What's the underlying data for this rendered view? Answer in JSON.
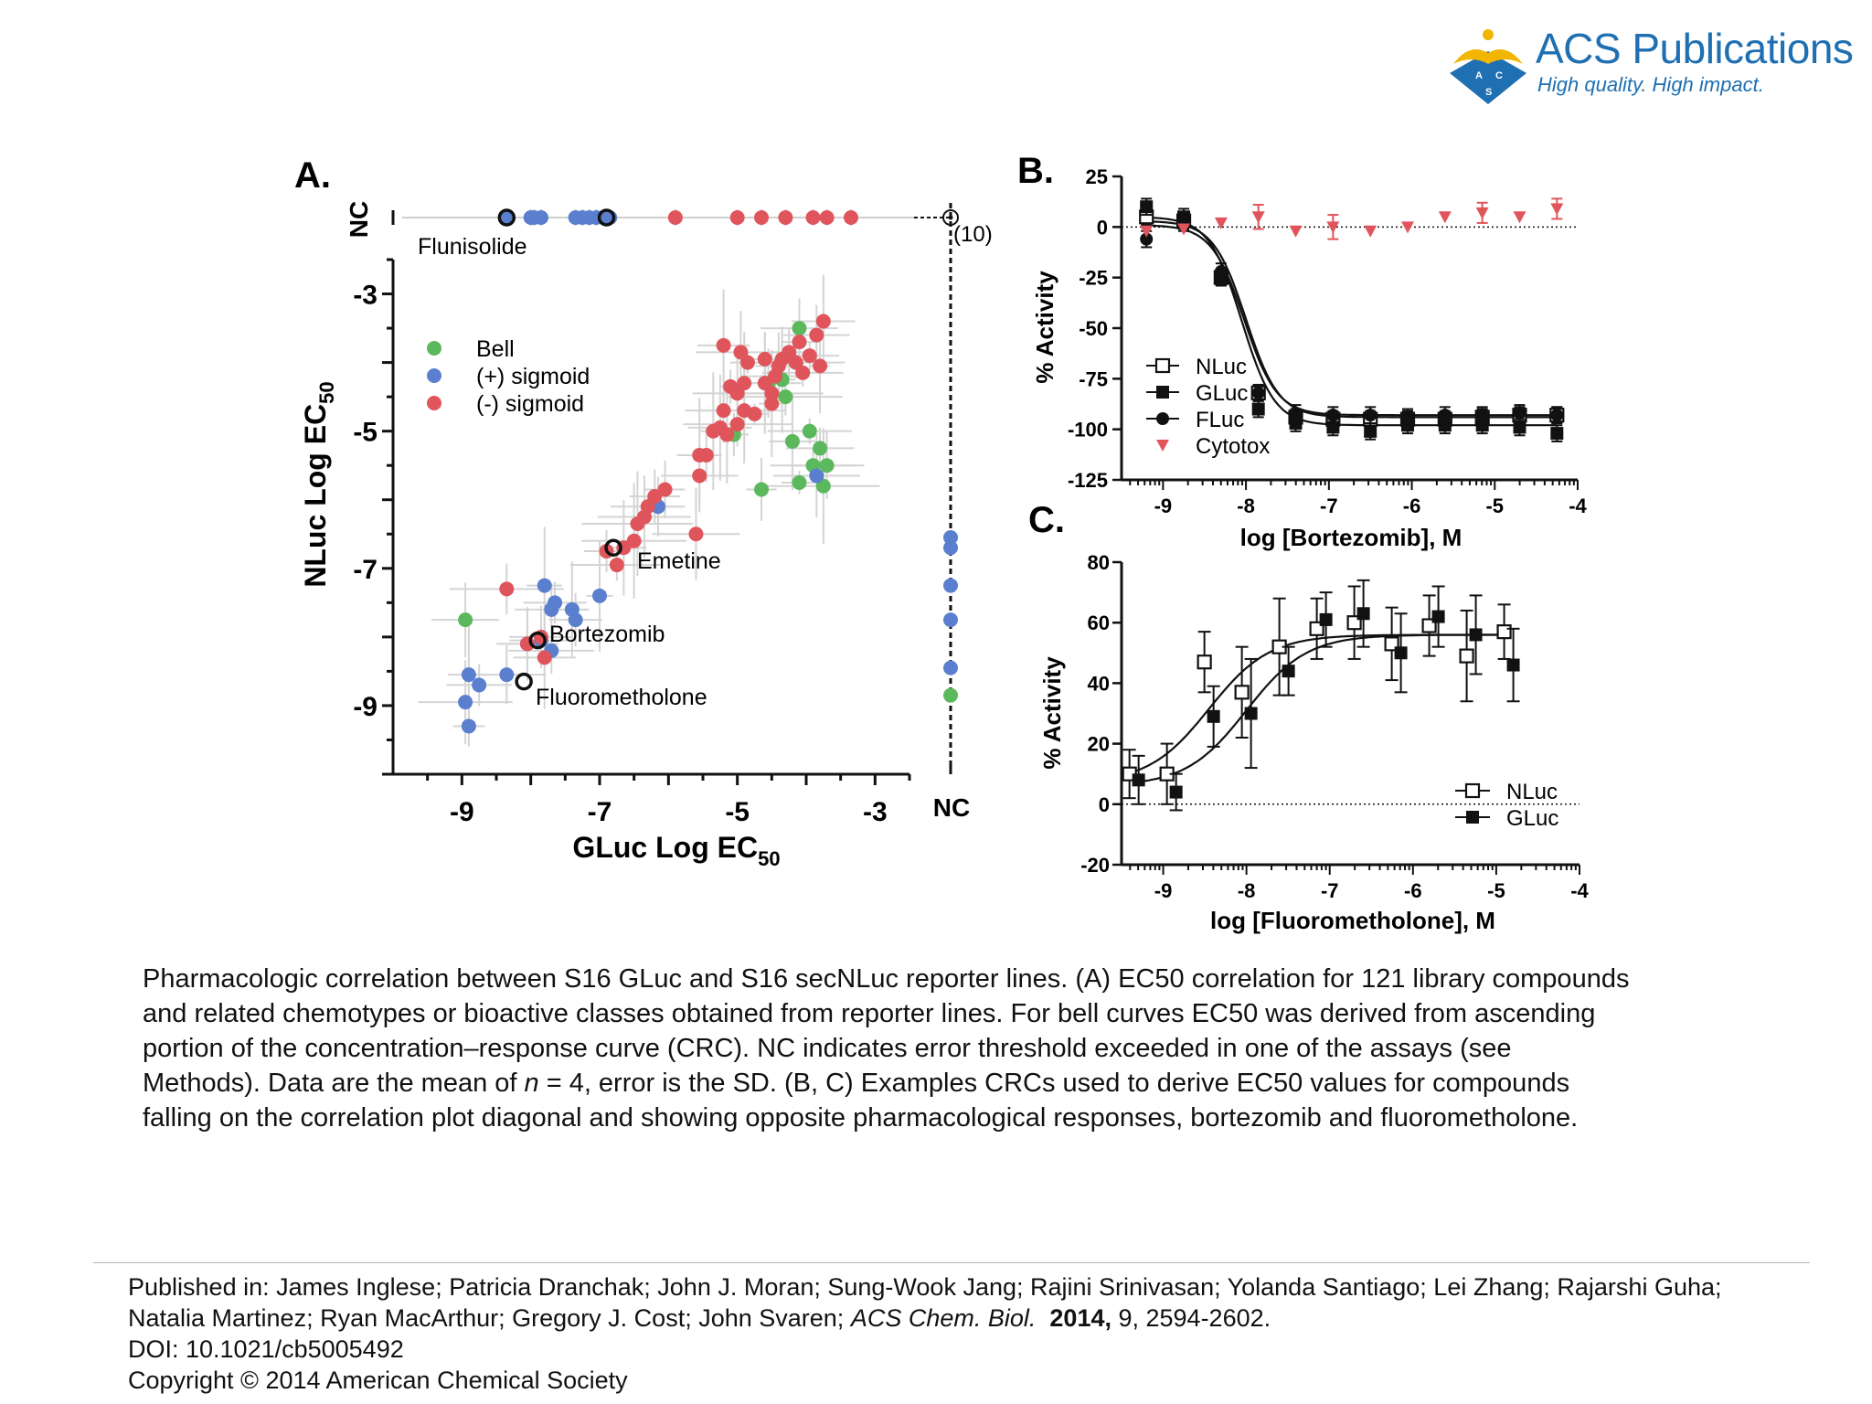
{
  "brand": {
    "name": "ACS Publications",
    "tagline": "High quality. High impact.",
    "logo_letters": [
      "A",
      "C",
      "S"
    ],
    "colors": {
      "blue": "#1f6fb3",
      "gold": "#f2b600"
    }
  },
  "colors": {
    "bell": "#5cb85c",
    "pos": "#5b7fcf",
    "neg": "#e0555c",
    "cytotox": "#e0555c"
  },
  "panels": {
    "a": "A.",
    "b": "B.",
    "c": "C."
  },
  "chart_data": [
    {
      "id": "A",
      "type": "scatter",
      "xlabel_main": "GLuc Log EC",
      "xlabel_sub": "50",
      "ylabel_main": "NLuc Log EC",
      "ylabel_sub": "50",
      "xlim": [
        -10,
        -2.5
      ],
      "ylim": [
        -10,
        -2.5
      ],
      "xticks": [
        -9,
        -7,
        -5,
        -3
      ],
      "yticks": [
        -3,
        -5,
        -7,
        -9
      ],
      "nc_label": "NC",
      "nc_count_label": "(10)",
      "legend": [
        {
          "name": "Bell",
          "group": "bell"
        },
        {
          "name": "(+) sigmoid",
          "group": "pos"
        },
        {
          "name": "(-) sigmoid",
          "group": "neg"
        }
      ],
      "annotations": [
        {
          "label": "Flunisolide",
          "x": -8.3,
          "y": "NC"
        },
        {
          "label": "Emetine",
          "x": -6.8,
          "y": -6.7
        },
        {
          "label": "Bortezomib",
          "x": -7.9,
          "y": -8.05
        },
        {
          "label": "Fluorometholone",
          "x": -8.1,
          "y": -8.65
        }
      ],
      "points": [
        {
          "group": "bell",
          "x": -8.95,
          "y": -7.75
        },
        {
          "group": "bell",
          "x": -5.05,
          "y": -5.05
        },
        {
          "group": "bell",
          "x": -4.55,
          "y": -4.3
        },
        {
          "group": "bell",
          "x": -4.35,
          "y": -4.25
        },
        {
          "group": "bell",
          "x": -4.1,
          "y": -3.5
        },
        {
          "group": "bell",
          "x": -4.2,
          "y": -5.15
        },
        {
          "group": "bell",
          "x": -3.95,
          "y": -5.0
        },
        {
          "group": "bell",
          "x": -3.8,
          "y": -5.25
        },
        {
          "group": "bell",
          "x": -3.9,
          "y": -5.5
        },
        {
          "group": "bell",
          "x": -3.7,
          "y": -5.5
        },
        {
          "group": "bell",
          "x": -4.1,
          "y": -5.75
        },
        {
          "group": "bell",
          "x": -3.75,
          "y": -5.8
        },
        {
          "group": "bell",
          "x": -4.65,
          "y": -5.85
        },
        {
          "group": "bell",
          "x": -4.3,
          "y": -4.5
        },
        {
          "group": "pos",
          "x": -8.05,
          "y": -8.1
        },
        {
          "group": "pos",
          "x": -7.7,
          "y": -8.2
        },
        {
          "group": "pos",
          "x": -7.8,
          "y": -7.25
        },
        {
          "group": "pos",
          "x": -7.65,
          "y": -7.5
        },
        {
          "group": "pos",
          "x": -7.7,
          "y": -7.6
        },
        {
          "group": "pos",
          "x": -7.4,
          "y": -7.6
        },
        {
          "group": "pos",
          "x": -7.35,
          "y": -7.75
        },
        {
          "group": "pos",
          "x": -7.0,
          "y": -7.4
        },
        {
          "group": "pos",
          "x": -8.9,
          "y": -8.55
        },
        {
          "group": "pos",
          "x": -8.75,
          "y": -8.7
        },
        {
          "group": "pos",
          "x": -8.35,
          "y": -8.55
        },
        {
          "group": "pos",
          "x": -8.95,
          "y": -8.95
        },
        {
          "group": "pos",
          "x": -8.9,
          "y": -9.3
        },
        {
          "group": "pos",
          "x": -7.85,
          "y": -8.05
        },
        {
          "group": "pos",
          "x": -6.15,
          "y": -6.1
        },
        {
          "group": "pos",
          "x": -3.85,
          "y": -5.65
        },
        {
          "group": "neg",
          "x": -8.35,
          "y": -7.3
        },
        {
          "group": "neg",
          "x": -8.05,
          "y": -8.1
        },
        {
          "group": "neg",
          "x": -7.8,
          "y": -8.3
        },
        {
          "group": "neg",
          "x": -7.85,
          "y": -8.0
        },
        {
          "group": "neg",
          "x": -6.9,
          "y": -6.75
        },
        {
          "group": "neg",
          "x": -6.75,
          "y": -6.95
        },
        {
          "group": "neg",
          "x": -6.65,
          "y": -6.7
        },
        {
          "group": "neg",
          "x": -6.5,
          "y": -6.6
        },
        {
          "group": "neg",
          "x": -6.45,
          "y": -6.35
        },
        {
          "group": "neg",
          "x": -6.35,
          "y": -6.25
        },
        {
          "group": "neg",
          "x": -6.3,
          "y": -6.1
        },
        {
          "group": "neg",
          "x": -6.2,
          "y": -5.95
        },
        {
          "group": "neg",
          "x": -6.05,
          "y": -5.85
        },
        {
          "group": "neg",
          "x": -5.6,
          "y": -6.5
        },
        {
          "group": "neg",
          "x": -5.55,
          "y": -5.35
        },
        {
          "group": "neg",
          "x": -5.45,
          "y": -5.35
        },
        {
          "group": "neg",
          "x": -5.55,
          "y": -5.65
        },
        {
          "group": "neg",
          "x": -5.35,
          "y": -5.0
        },
        {
          "group": "neg",
          "x": -5.25,
          "y": -4.95
        },
        {
          "group": "neg",
          "x": -5.2,
          "y": -4.7
        },
        {
          "group": "neg",
          "x": -5.15,
          "y": -5.05
        },
        {
          "group": "neg",
          "x": -5.0,
          "y": -4.9
        },
        {
          "group": "neg",
          "x": -5.1,
          "y": -4.35
        },
        {
          "group": "neg",
          "x": -5.0,
          "y": -4.45
        },
        {
          "group": "neg",
          "x": -4.9,
          "y": -4.7
        },
        {
          "group": "neg",
          "x": -4.9,
          "y": -4.3
        },
        {
          "group": "neg",
          "x": -4.85,
          "y": -4.0
        },
        {
          "group": "neg",
          "x": -4.75,
          "y": -4.75
        },
        {
          "group": "neg",
          "x": -4.6,
          "y": -4.3
        },
        {
          "group": "neg",
          "x": -4.5,
          "y": -4.45
        },
        {
          "group": "neg",
          "x": -4.45,
          "y": -4.2
        },
        {
          "group": "neg",
          "x": -4.4,
          "y": -4.05
        },
        {
          "group": "neg",
          "x": -4.35,
          "y": -3.95
        },
        {
          "group": "neg",
          "x": -4.25,
          "y": -3.85
        },
        {
          "group": "neg",
          "x": -4.15,
          "y": -4.0
        },
        {
          "group": "neg",
          "x": -4.1,
          "y": -3.7
        },
        {
          "group": "neg",
          "x": -4.05,
          "y": -4.15
        },
        {
          "group": "neg",
          "x": -3.95,
          "y": -3.9
        },
        {
          "group": "neg",
          "x": -3.85,
          "y": -3.6
        },
        {
          "group": "neg",
          "x": -3.8,
          "y": -4.05
        },
        {
          "group": "neg",
          "x": -3.75,
          "y": -3.4
        },
        {
          "group": "neg",
          "x": -5.2,
          "y": -3.75
        },
        {
          "group": "neg",
          "x": -4.95,
          "y": -3.85
        },
        {
          "group": "neg",
          "x": -4.6,
          "y": -3.95
        },
        {
          "group": "neg",
          "x": -4.5,
          "y": -4.6
        }
      ],
      "top_row": [
        {
          "group": "pos",
          "x": -8.35
        },
        {
          "group": "pos",
          "x": -8.0
        },
        {
          "group": "pos",
          "x": -7.95
        },
        {
          "group": "pos",
          "x": -7.85
        },
        {
          "group": "pos",
          "x": -7.35
        },
        {
          "group": "pos",
          "x": -7.25
        },
        {
          "group": "pos",
          "x": -7.15
        },
        {
          "group": "pos",
          "x": -7.05
        },
        {
          "group": "pos",
          "x": -6.95
        },
        {
          "group": "pos",
          "x": -6.85
        },
        {
          "group": "neg",
          "x": -5.9
        },
        {
          "group": "neg",
          "x": -5.0
        },
        {
          "group": "neg",
          "x": -4.65
        },
        {
          "group": "neg",
          "x": -4.3
        },
        {
          "group": "neg",
          "x": -3.9
        },
        {
          "group": "neg",
          "x": -3.7
        },
        {
          "group": "neg",
          "x": -3.35
        }
      ],
      "right_column": [
        {
          "group": "pos",
          "y": -6.55
        },
        {
          "group": "pos",
          "y": -6.7
        },
        {
          "group": "pos",
          "y": -7.25
        },
        {
          "group": "pos",
          "y": -7.75
        },
        {
          "group": "pos",
          "y": -8.45
        },
        {
          "group": "bell",
          "y": -8.85
        }
      ],
      "highlighted": [
        {
          "x": -8.35,
          "y": "NC"
        },
        {
          "x": -6.9,
          "y": "NC"
        },
        {
          "x": -6.8,
          "y": -6.7
        },
        {
          "x": -7.9,
          "y": -8.05
        },
        {
          "x": -8.1,
          "y": -8.65
        }
      ]
    },
    {
      "id": "B",
      "type": "line",
      "xlabel": "log [Bortezomib], M",
      "ylabel": "% Activity",
      "xlim": [
        -9.5,
        -4
      ],
      "ylim": [
        -125,
        25
      ],
      "xticks": [
        -9,
        -8,
        -7,
        -6,
        -5,
        -4
      ],
      "yticks": [
        25,
        0,
        -25,
        -50,
        -75,
        -100,
        -125
      ],
      "x": [
        -9.2,
        -8.75,
        -8.3,
        -7.85,
        -7.4,
        -6.95,
        -6.5,
        -6.05,
        -5.6,
        -5.15,
        -4.7,
        -4.25
      ],
      "series": [
        {
          "name": "NLuc",
          "marker": "open-square",
          "values": [
            5,
            3,
            -25,
            -82,
            -94,
            -95,
            -95,
            -95,
            -95,
            -94,
            -93,
            -93
          ],
          "fit": {
            "top": 3,
            "bottom": -94,
            "ec50": -8.0
          }
        },
        {
          "name": "GLuc",
          "marker": "filled-square",
          "values": [
            10,
            5,
            -25,
            -90,
            -97,
            -99,
            -101,
            -98,
            -98,
            -98,
            -99,
            -102
          ],
          "fit": {
            "top": 5,
            "bottom": -98,
            "ec50": -8.05
          }
        },
        {
          "name": "FLuc",
          "marker": "filled-circle",
          "values": [
            -6,
            2,
            -22,
            -82,
            -92,
            -93,
            -93,
            -94,
            -93,
            -93,
            -92,
            -93
          ],
          "fit": {
            "top": 1,
            "bottom": -93,
            "ec50": -8.02
          }
        },
        {
          "name": "Cytotox",
          "marker": "triangle-down",
          "values": [
            -2,
            -1,
            2,
            5,
            -2,
            0,
            -2,
            0,
            5,
            7,
            5,
            9
          ],
          "errors": [
            0,
            0,
            0,
            6,
            0,
            6,
            0,
            0,
            0,
            5,
            0,
            5
          ]
        }
      ]
    },
    {
      "id": "C",
      "type": "line",
      "xlabel": "log [Fluorometholone], M",
      "ylabel": "% Activity",
      "xlim": [
        -9.5,
        -4
      ],
      "ylim": [
        -20,
        80
      ],
      "xticks": [
        -9,
        -8,
        -7,
        -6,
        -5,
        -4
      ],
      "yticks": [
        80,
        60,
        40,
        20,
        0,
        -20
      ],
      "x": [
        -9.35,
        -8.9,
        -8.45,
        -8.0,
        -7.55,
        -7.1,
        -6.65,
        -6.2,
        -5.75,
        -5.3,
        -4.85
      ],
      "series": [
        {
          "name": "NLuc",
          "marker": "open-square",
          "values": [
            10,
            10,
            47,
            37,
            52,
            58,
            60,
            53,
            59,
            49,
            57
          ],
          "errors": [
            8,
            10,
            10,
            15,
            16,
            10,
            12,
            12,
            10,
            15,
            9
          ],
          "fit": {
            "top": 56,
            "bottom": 7,
            "ec50": -8.45
          }
        },
        {
          "name": "GLuc",
          "marker": "filled-square",
          "values": [
            8,
            4,
            29,
            30,
            44,
            61,
            63,
            50,
            62,
            56,
            46
          ],
          "errors": [
            8,
            6,
            10,
            18,
            8,
            9,
            11,
            13,
            10,
            13,
            12
          ],
          "fit": {
            "top": 56,
            "bottom": 6,
            "ec50": -8.0
          }
        }
      ]
    }
  ],
  "caption": {
    "lines": [
      "Pharmacologic correlation between S16 GLuc and S16 secNLuc reporter lines. (A) EC50 correlation for 121 library compounds",
      "and related chemotypes or bioactive classes obtained from reporter lines. For bell curves EC50 was derived from ascending",
      "portion of the concentration–response curve (CRC). NC indicates error threshold exceeded in one of the assays (see"
    ],
    "line4_a": "Methods). Data are the mean of ",
    "line4_n": "n",
    "line4_b": " = 4, error is the SD. (B, C) Examples CRCs used to derive EC50 values for compounds",
    "line5": "falling on the correlation plot diagonal and showing opposite pharmacological responses, bortezomib and fluorometholone."
  },
  "publication": {
    "line1": "Published in: James Inglese; Patricia Dranchak; John J. Moran; Sung-Wook Jang; Rajini Srinivasan; Yolanda Santiago; Lei Zhang; Rajarshi Guha;",
    "line2_authors": "Natalia Martinez; Ryan MacArthur; Gregory J. Cost; John Svaren; ",
    "line2_journal": "ACS Chem. Biol.",
    "line2_year": "2014,",
    "line2_rest": " 9, 2594-2602.",
    "doi": "DOI: 10.1021/cb5005492",
    "copyright": "Copyright © 2014 American Chemical Society"
  }
}
